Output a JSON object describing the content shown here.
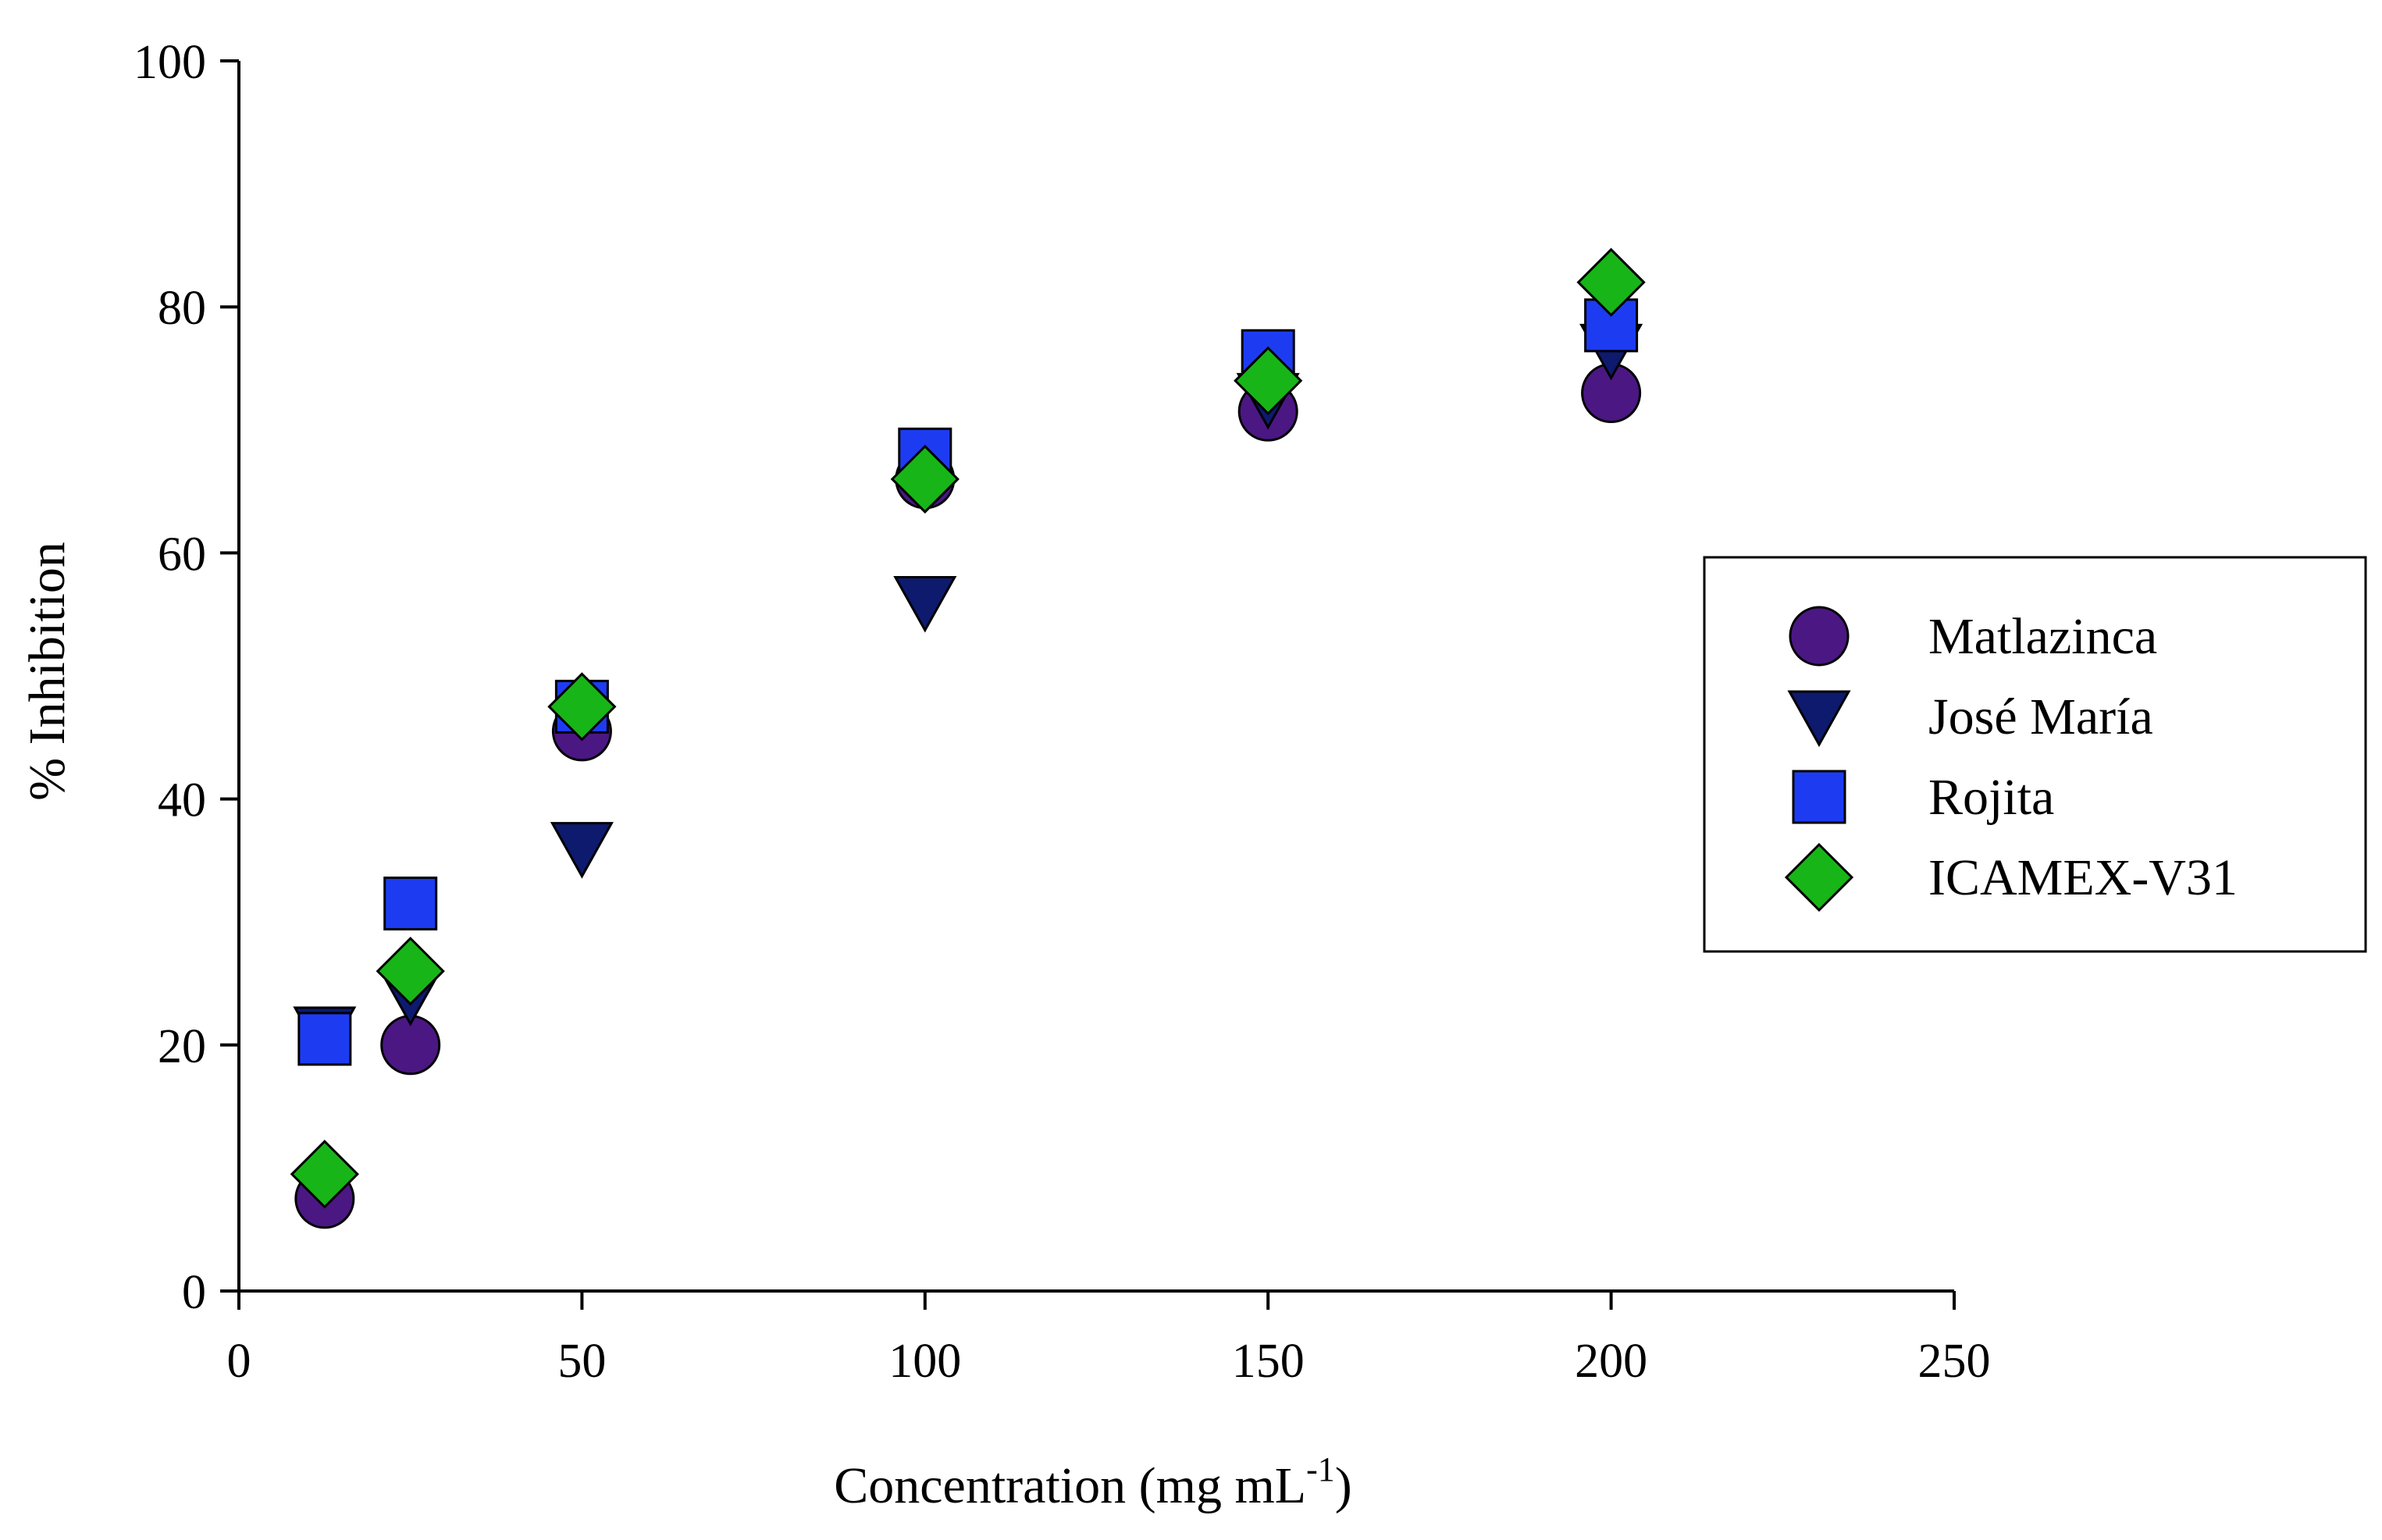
{
  "chart_data": {
    "type": "scatter",
    "title": "",
    "xlabel": "Concentration (mg mL",
    "xlabel_superscript": "-1",
    "xlabel_suffix": ")",
    "ylabel": "% Inhibition",
    "xlim": [
      0,
      250
    ],
    "ylim": [
      0,
      100
    ],
    "x_ticks": [
      "0",
      "50",
      "100",
      "150",
      "200",
      "250"
    ],
    "y_ticks": [
      "0",
      "20",
      "40",
      "60",
      "80",
      "100"
    ],
    "grid": false,
    "legend_position": "right",
    "series": [
      {
        "name": "Matlazinca",
        "marker": "circle",
        "color": "#4b1783",
        "x": [
          12.5,
          25,
          50,
          100,
          150,
          200
        ],
        "y": [
          7.5,
          20,
          45.5,
          66,
          71.5,
          73
        ]
      },
      {
        "name": "José María",
        "marker": "triangle-down",
        "color": "#0d1a6e",
        "x": [
          12.5,
          25,
          50,
          100,
          150,
          200
        ],
        "y": [
          21,
          24,
          36,
          56,
          72.5,
          76.5
        ]
      },
      {
        "name": "Rojita",
        "marker": "square",
        "color": "#1d3cf2",
        "x": [
          12.5,
          25,
          50,
          100,
          150,
          200
        ],
        "y": [
          20.5,
          31.5,
          47.5,
          68,
          76,
          78.5
        ]
      },
      {
        "name": "ICAMEX-V31",
        "marker": "diamond",
        "color": "#18b518",
        "x": [
          12.5,
          25,
          50,
          100,
          150,
          200
        ],
        "y": [
          9.5,
          26,
          47.5,
          66,
          74,
          82
        ]
      }
    ]
  }
}
